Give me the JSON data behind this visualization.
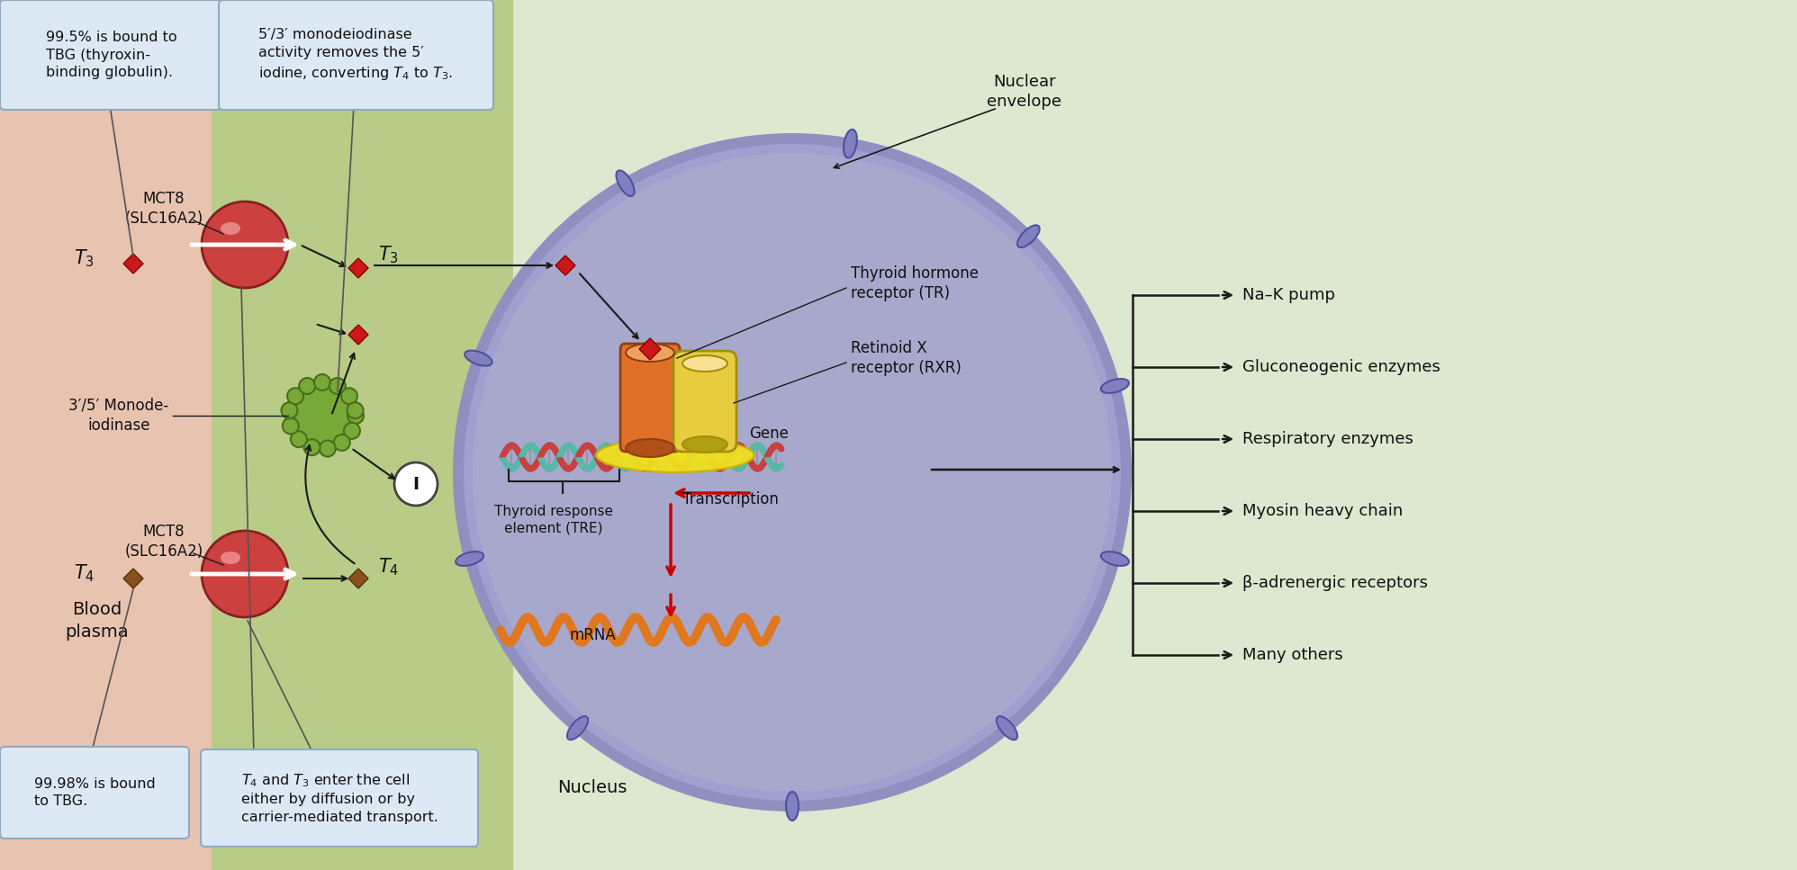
{
  "bg_outer": "#dce8d0",
  "bg_plasma": "#e8c4b0",
  "bg_cytosol": "#b8cc88",
  "bg_nucleus_fill": "#a8a8cc",
  "bg_nucleus_border": "#7070a8",
  "callout_bg": "#dce8f4",
  "callout_border": "#90aac0",
  "red_diamond_color": "#cc1818",
  "brown_diamond_color": "#8b5020",
  "mct8_sphere_color": "#cc4040",
  "mct8_sphere_shine": "#ee9090",
  "mct8_sphere_edge": "#882020",
  "arrow_black": "#1a1a1a",
  "arrow_red": "#cc0000",
  "receptor_tr_color": "#e07028",
  "receptor_tr_edge": "#904010",
  "receptor_rxr_color": "#e8cc40",
  "receptor_rxr_edge": "#a09010",
  "dna_strand1": "#58b8a8",
  "dna_strand2": "#c84040",
  "mrna_color": "#e07820",
  "enzyme_color": "#78a838",
  "enzyme_edge": "#487018",
  "nuclear_border_color": "#7070a8",
  "text_dark": "#111111",
  "tre_glow": "#f0e020",
  "targets": [
    "Na–K pump",
    "Gluconeogenic enzymes",
    "Respiratory enzymes",
    "Myosin heavy chain",
    "β-adrenergic receptors",
    "Many others"
  ],
  "callout1": "99.5% is bound to\nTBG (thyroxin-\nbinding globulin).",
  "callout2": "5′/3′ monodeiodinase\nactivity removes the 5′\niodine, converting T₄ to T₃.",
  "callout3": "T₄ and T₃ enter the cell\neither by diffusion or by\ncarrier-mediated transport.",
  "callout4": "99.98% is bound\nto TBG."
}
